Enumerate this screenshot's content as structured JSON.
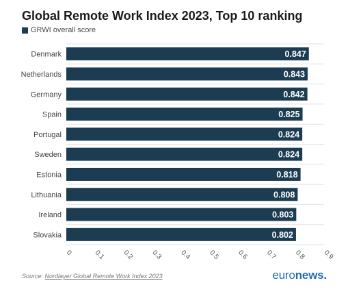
{
  "title": "Global Remote Work Index 2023, Top 10 ranking",
  "legend": {
    "label": "GRWI overall score"
  },
  "source": {
    "prefix": "Source:",
    "link_text": "Nordlayer Global Remote Work Index 2023"
  },
  "brand": {
    "part1": "euro",
    "part2": "news",
    "dot": "."
  },
  "colors": {
    "bar": "#1c3d51",
    "grid": "#e2e2e2",
    "brand": "#1f6bb6"
  },
  "chart_data": {
    "type": "bar",
    "orientation": "horizontal",
    "categories": [
      "Denmark",
      "Netherlands",
      "Germany",
      "Spain",
      "Portugal",
      "Sweden",
      "Estonia",
      "Lithuania",
      "Ireland",
      "Slovakia"
    ],
    "series": [
      {
        "name": "GRWI overall score",
        "values": [
          0.847,
          0.843,
          0.842,
          0.825,
          0.824,
          0.824,
          0.818,
          0.808,
          0.803,
          0.802
        ]
      }
    ],
    "data_labels": [
      "0.847",
      "0.843",
      "0.842",
      "0.825",
      "0.824",
      "0.824",
      "0.818",
      "0.808",
      "0.803",
      "0.802"
    ],
    "xticks": [
      "0",
      "0.1",
      "0.2",
      "0.3",
      "0.4",
      "0.5",
      "0.6",
      "0.7",
      "0.8",
      "0.9"
    ],
    "xlim": [
      0,
      0.9
    ],
    "grid": true,
    "legend_position": "top-left"
  }
}
